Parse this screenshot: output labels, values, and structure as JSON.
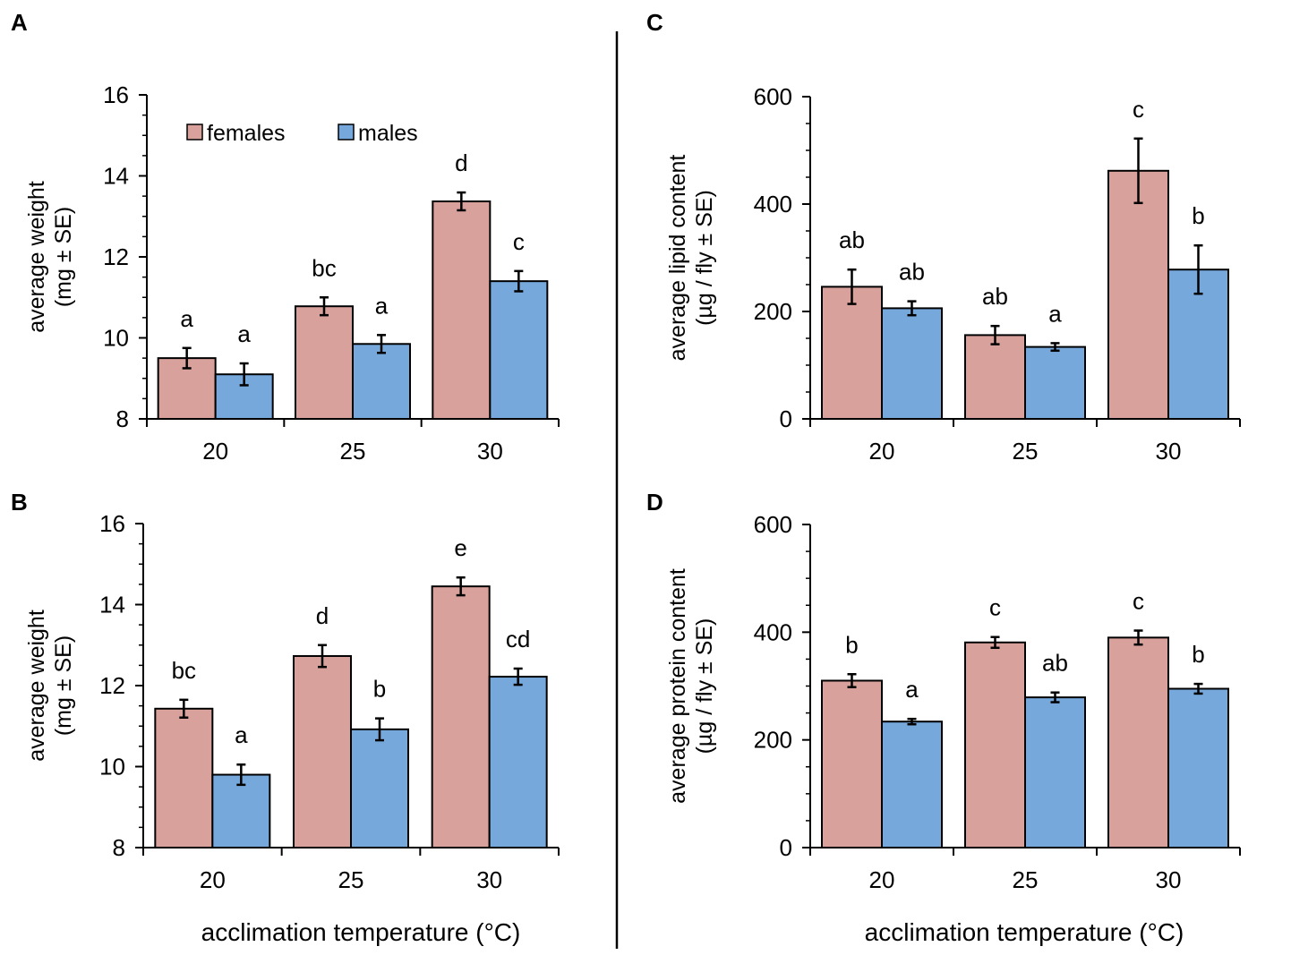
{
  "figure": {
    "legend": {
      "females": "females",
      "males": "males"
    },
    "xlabel": "acclimation temperature (°C)",
    "colors": {
      "females": "#d9a19c",
      "males": "#76a8dc",
      "axis": "#000000"
    }
  },
  "chart_data": [
    {
      "panel": "A",
      "type": "bar",
      "categories": [
        "20",
        "25",
        "30"
      ],
      "ylabel_lines": [
        "average weight",
        "(mg ± SE)"
      ],
      "ylim": [
        8,
        16
      ],
      "yticks": [
        8,
        10,
        12,
        14,
        16
      ],
      "legend_shown": true,
      "series": [
        {
          "name": "females",
          "values": [
            9.5,
            10.78,
            13.37
          ],
          "errors": [
            0.25,
            0.22,
            0.22
          ],
          "letters": [
            "a",
            "bc",
            "d"
          ]
        },
        {
          "name": "males",
          "values": [
            9.1,
            9.85,
            11.4
          ],
          "errors": [
            0.27,
            0.22,
            0.25
          ],
          "letters": [
            "a",
            "a",
            "c"
          ]
        }
      ]
    },
    {
      "panel": "B",
      "type": "bar",
      "categories": [
        "20",
        "25",
        "30"
      ],
      "ylabel_lines": [
        "average weight",
        "(mg ± SE)"
      ],
      "ylim": [
        8,
        16
      ],
      "yticks": [
        8,
        10,
        12,
        14,
        16
      ],
      "legend_shown": false,
      "series": [
        {
          "name": "females",
          "values": [
            11.43,
            12.73,
            14.45
          ],
          "errors": [
            0.22,
            0.27,
            0.22
          ],
          "letters": [
            "bc",
            "d",
            "e"
          ]
        },
        {
          "name": "males",
          "values": [
            9.8,
            10.92,
            12.22
          ],
          "errors": [
            0.25,
            0.27,
            0.2
          ],
          "letters": [
            "a",
            "b",
            "cd"
          ]
        }
      ]
    },
    {
      "panel": "C",
      "type": "bar",
      "categories": [
        "20",
        "25",
        "30"
      ],
      "ylabel_lines": [
        "average lipid content",
        "(µg / fly ± SE)"
      ],
      "ylim": [
        0,
        600
      ],
      "yticks": [
        0,
        200,
        400,
        600
      ],
      "legend_shown": false,
      "series": [
        {
          "name": "females",
          "values": [
            246,
            156,
            462
          ],
          "errors": [
            32,
            17,
            60
          ],
          "letters": [
            "ab",
            "ab",
            "c"
          ]
        },
        {
          "name": "males",
          "values": [
            206,
            134,
            278
          ],
          "errors": [
            13,
            7,
            45
          ],
          "letters": [
            "ab",
            "a",
            "b"
          ]
        }
      ]
    },
    {
      "panel": "D",
      "type": "bar",
      "categories": [
        "20",
        "25",
        "30"
      ],
      "ylabel_lines": [
        "average protein content",
        "(µg / fly ± SE)"
      ],
      "ylim": [
        0,
        600
      ],
      "yticks": [
        0,
        200,
        400,
        600
      ],
      "legend_shown": false,
      "series": [
        {
          "name": "females",
          "values": [
            310,
            381,
            390
          ],
          "errors": [
            12,
            10,
            13
          ],
          "letters": [
            "b",
            "c",
            "c"
          ]
        },
        {
          "name": "males",
          "values": [
            234,
            279,
            295
          ],
          "errors": [
            5,
            9,
            9
          ],
          "letters": [
            "a",
            "ab",
            "b"
          ]
        }
      ]
    }
  ]
}
